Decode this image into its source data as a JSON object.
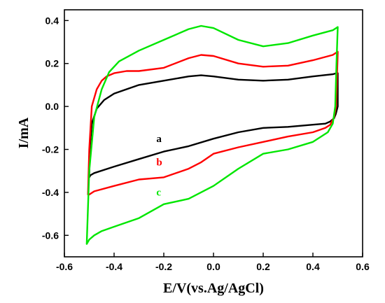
{
  "chart_data": {
    "type": "line",
    "title": "",
    "xlabel": "E/V(vs.Ag/AgCl)",
    "ylabel": "I/mA",
    "xlim": [
      -0.6,
      0.6
    ],
    "ylim": [
      -0.7,
      0.45
    ],
    "x_ticks": [
      -0.6,
      -0.4,
      -0.2,
      0.0,
      0.2,
      0.4,
      0.6
    ],
    "y_ticks": [
      0.4,
      0.2,
      0.0,
      -0.2,
      -0.4,
      -0.6
    ],
    "x_tick_labels": [
      "-0.6",
      "-0.4",
      "-0.2",
      "0.0",
      "0.2",
      "0.4",
      "0.6"
    ],
    "y_tick_labels": [
      "0.4",
      "0.2",
      "0.0",
      "-0.2",
      "-0.4",
      "-0.6"
    ],
    "grid": false,
    "legend": "none",
    "series": [
      {
        "label": "a",
        "color": "#000000",
        "label_at": [
          -0.23,
          -0.165
        ],
        "x": [
          -0.5,
          -0.498,
          -0.49,
          -0.47,
          -0.44,
          -0.4,
          -0.3,
          -0.2,
          -0.1,
          -0.05,
          0.0,
          0.1,
          0.2,
          0.3,
          0.4,
          0.48,
          0.495,
          0.5,
          0.5,
          0.492,
          0.485,
          0.47,
          0.45,
          0.4,
          0.3,
          0.2,
          0.1,
          0.0,
          -0.1,
          -0.2,
          -0.3,
          -0.4,
          -0.48,
          -0.495,
          -0.5
        ],
        "y": [
          -0.33,
          -0.2,
          -0.08,
          -0.01,
          0.03,
          0.06,
          0.1,
          0.12,
          0.14,
          0.145,
          0.14,
          0.125,
          0.12,
          0.125,
          0.14,
          0.15,
          0.155,
          0.155,
          0.0,
          -0.035,
          -0.055,
          -0.07,
          -0.08,
          -0.085,
          -0.095,
          -0.1,
          -0.12,
          -0.15,
          -0.185,
          -0.21,
          -0.245,
          -0.28,
          -0.31,
          -0.32,
          -0.33
        ]
      },
      {
        "label": "b",
        "color": "#ff0000",
        "label_at": [
          -0.23,
          -0.275
        ],
        "x": [
          -0.505,
          -0.5,
          -0.49,
          -0.47,
          -0.45,
          -0.43,
          -0.4,
          -0.35,
          -0.3,
          -0.2,
          -0.1,
          -0.05,
          0.0,
          0.1,
          0.2,
          0.3,
          0.4,
          0.48,
          0.5,
          0.5,
          0.493,
          0.485,
          0.47,
          0.45,
          0.4,
          0.3,
          0.2,
          0.1,
          0.0,
          -0.05,
          -0.1,
          -0.2,
          -0.3,
          -0.4,
          -0.48,
          -0.5
        ],
        "y": [
          -0.41,
          -0.2,
          0.0,
          0.08,
          0.12,
          0.14,
          0.155,
          0.165,
          0.165,
          0.18,
          0.225,
          0.24,
          0.235,
          0.2,
          0.185,
          0.19,
          0.215,
          0.24,
          0.255,
          0.25,
          0.0,
          -0.05,
          -0.085,
          -0.1,
          -0.12,
          -0.14,
          -0.165,
          -0.19,
          -0.22,
          -0.26,
          -0.29,
          -0.33,
          -0.34,
          -0.37,
          -0.395,
          -0.41
        ]
      },
      {
        "label": "c",
        "color": "#00e600",
        "label_at": [
          -0.23,
          -0.415
        ],
        "x": [
          -0.51,
          -0.5,
          -0.48,
          -0.45,
          -0.42,
          -0.38,
          -0.3,
          -0.2,
          -0.1,
          -0.05,
          0.0,
          0.1,
          0.2,
          0.3,
          0.4,
          0.48,
          0.5,
          0.5,
          0.495,
          0.49,
          0.48,
          0.46,
          0.4,
          0.3,
          0.2,
          0.1,
          0.0,
          -0.1,
          -0.2,
          -0.3,
          -0.4,
          -0.45,
          -0.48,
          -0.5,
          -0.51
        ],
        "y": [
          -0.64,
          -0.3,
          -0.05,
          0.08,
          0.16,
          0.21,
          0.26,
          0.31,
          0.36,
          0.375,
          0.365,
          0.31,
          0.28,
          0.295,
          0.33,
          0.355,
          0.37,
          0.37,
          0.2,
          0.0,
          -0.08,
          -0.12,
          -0.165,
          -0.2,
          -0.22,
          -0.29,
          -0.37,
          -0.43,
          -0.455,
          -0.52,
          -0.56,
          -0.58,
          -0.6,
          -0.62,
          -0.64
        ]
      }
    ]
  }
}
